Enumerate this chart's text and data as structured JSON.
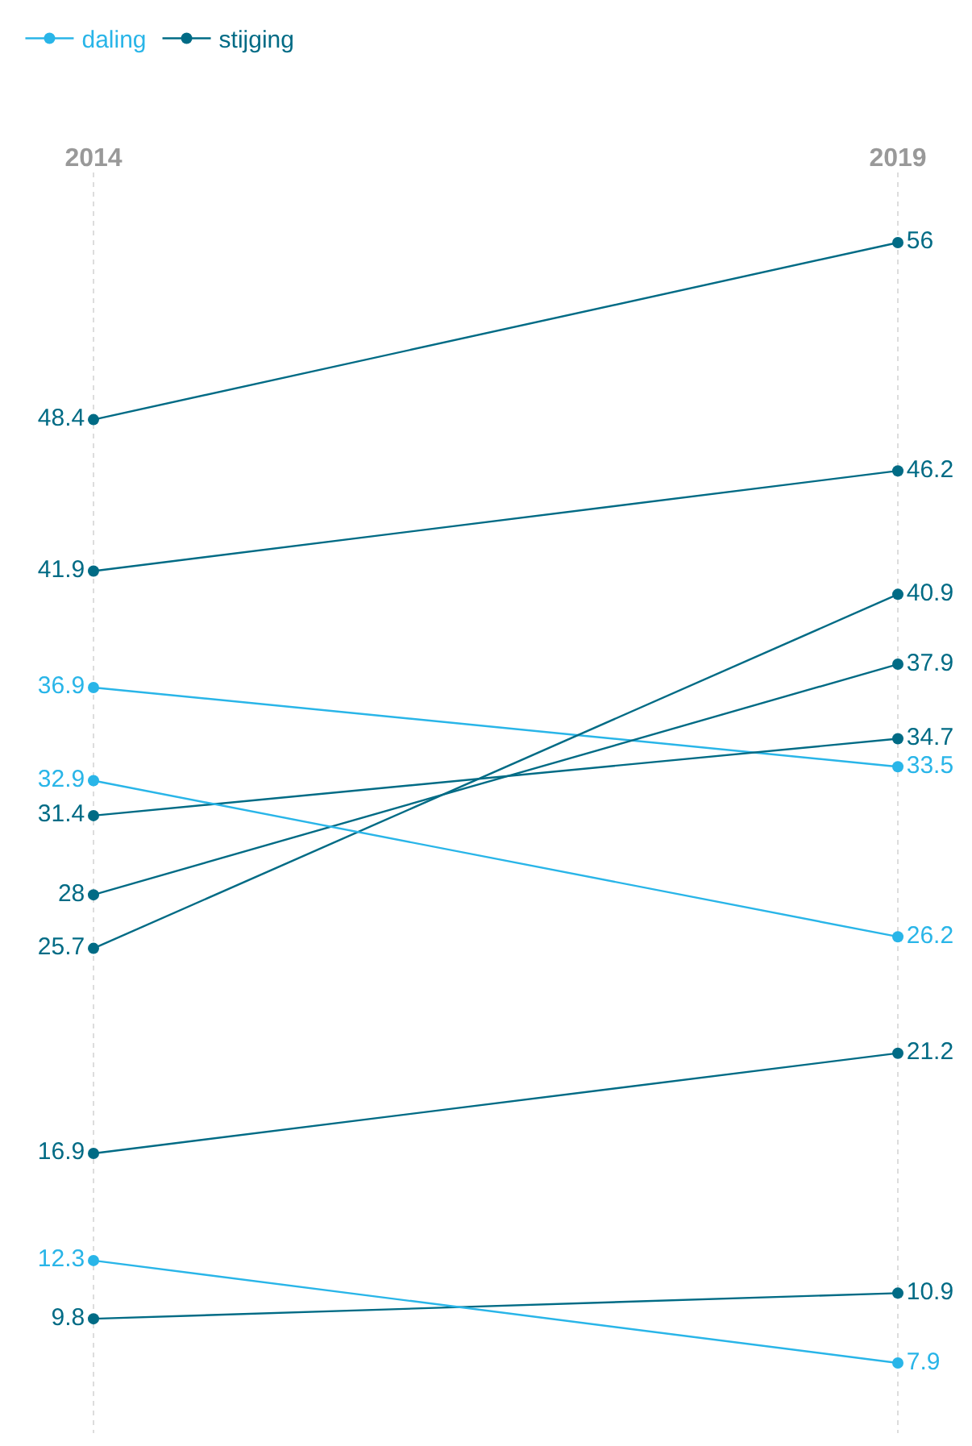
{
  "chart_data": {
    "type": "line",
    "categories": [
      "2014",
      "2019"
    ],
    "series": [
      {
        "name": "daling",
        "color": "#29b5e8",
        "values": [
          36.9,
          33.5
        ]
      },
      {
        "name": "stijging",
        "color": "#006b85",
        "values": [
          48.4,
          56
        ]
      },
      {
        "color": "#006b85",
        "values": [
          41.9,
          46.2
        ]
      },
      {
        "color": "#006b85",
        "values": [
          25.7,
          40.9
        ]
      },
      {
        "color": "#006b85",
        "values": [
          28,
          37.9
        ]
      },
      {
        "color": "#006b85",
        "values": [
          31.4,
          34.7
        ]
      },
      {
        "color": "#006b85",
        "values": [
          16.9,
          21.2
        ]
      },
      {
        "color": "#006b85",
        "values": [
          9.8,
          10.9
        ]
      },
      {
        "color": "#29b5e8",
        "values": [
          32.9,
          26.2
        ]
      },
      {
        "color": "#29b5e8",
        "values": [
          12.3,
          7.9
        ]
      }
    ],
    "data_labels": true,
    "marker": "circle",
    "line_style": "solid",
    "grid": "x",
    "tick_labels": "x",
    "legend": "top left"
  }
}
